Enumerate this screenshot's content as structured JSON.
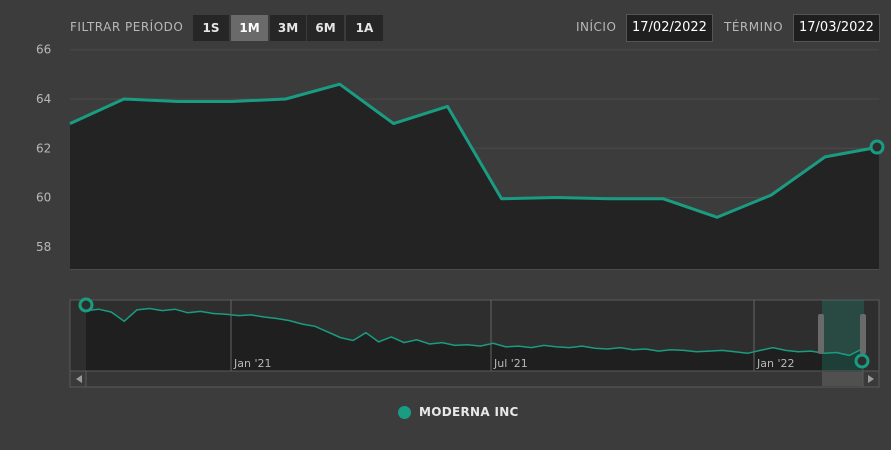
{
  "toolbar": {
    "period_label": "FILTRAR PERÍODO",
    "ranges": [
      {
        "label": "1S",
        "active": false
      },
      {
        "label": "1M",
        "active": true
      },
      {
        "label": "3M",
        "active": false
      },
      {
        "label": "6M",
        "active": false
      },
      {
        "label": "1A",
        "active": false
      }
    ],
    "start_label": "INÍCIO",
    "start_value": "17/02/2022",
    "end_label": "TÉRMINO",
    "end_value": "17/03/2022"
  },
  "colors": {
    "series": "#1a9c82",
    "background": "#3c3c3c",
    "plot_area": "#232323",
    "grid": "#4a4a4a",
    "text": "#b8b8b8"
  },
  "chart_data": {
    "type": "area",
    "title": "",
    "xlabel": "",
    "ylabel": "",
    "ylim": [
      57.1,
      66.8
    ],
    "y_ticks": [
      58,
      60,
      62,
      64,
      66
    ],
    "grid": true,
    "legend_position": "bottom-center",
    "series": [
      {
        "name": "MODERNA INC",
        "values": [
          63.0,
          64.0,
          63.9,
          63.9,
          64.0,
          64.6,
          63.0,
          63.7,
          59.95,
          60.0,
          59.95,
          59.95,
          59.2,
          60.1,
          61.65,
          62.05
        ]
      }
    ],
    "navigator": {
      "x_ticks": [
        "Jan '21",
        "Jul '21",
        "Jan '22"
      ],
      "series_values": [
        66,
        66.2,
        65.8,
        64.5,
        66.1,
        66.3,
        66.0,
        66.2,
        65.7,
        65.9,
        65.6,
        65.5,
        65.3,
        65.4,
        65.1,
        64.9,
        64.6,
        64.1,
        63.8,
        63.0,
        62.2,
        61.8,
        62.9,
        61.6,
        62.3,
        61.5,
        61.9,
        61.3,
        61.5,
        61.1,
        61.2,
        61.0,
        61.4,
        60.9,
        61.0,
        60.8,
        61.1,
        60.9,
        60.8,
        61.0,
        60.7,
        60.6,
        60.8,
        60.5,
        60.6,
        60.3,
        60.5,
        60.4,
        60.2,
        60.3,
        60.4,
        60.2,
        60.0,
        60.4,
        60.8,
        60.4,
        60.2,
        60.3,
        60.0,
        60.1,
        59.7,
        60.6
      ],
      "ylim": [
        57.5,
        67.5
      ]
    }
  }
}
